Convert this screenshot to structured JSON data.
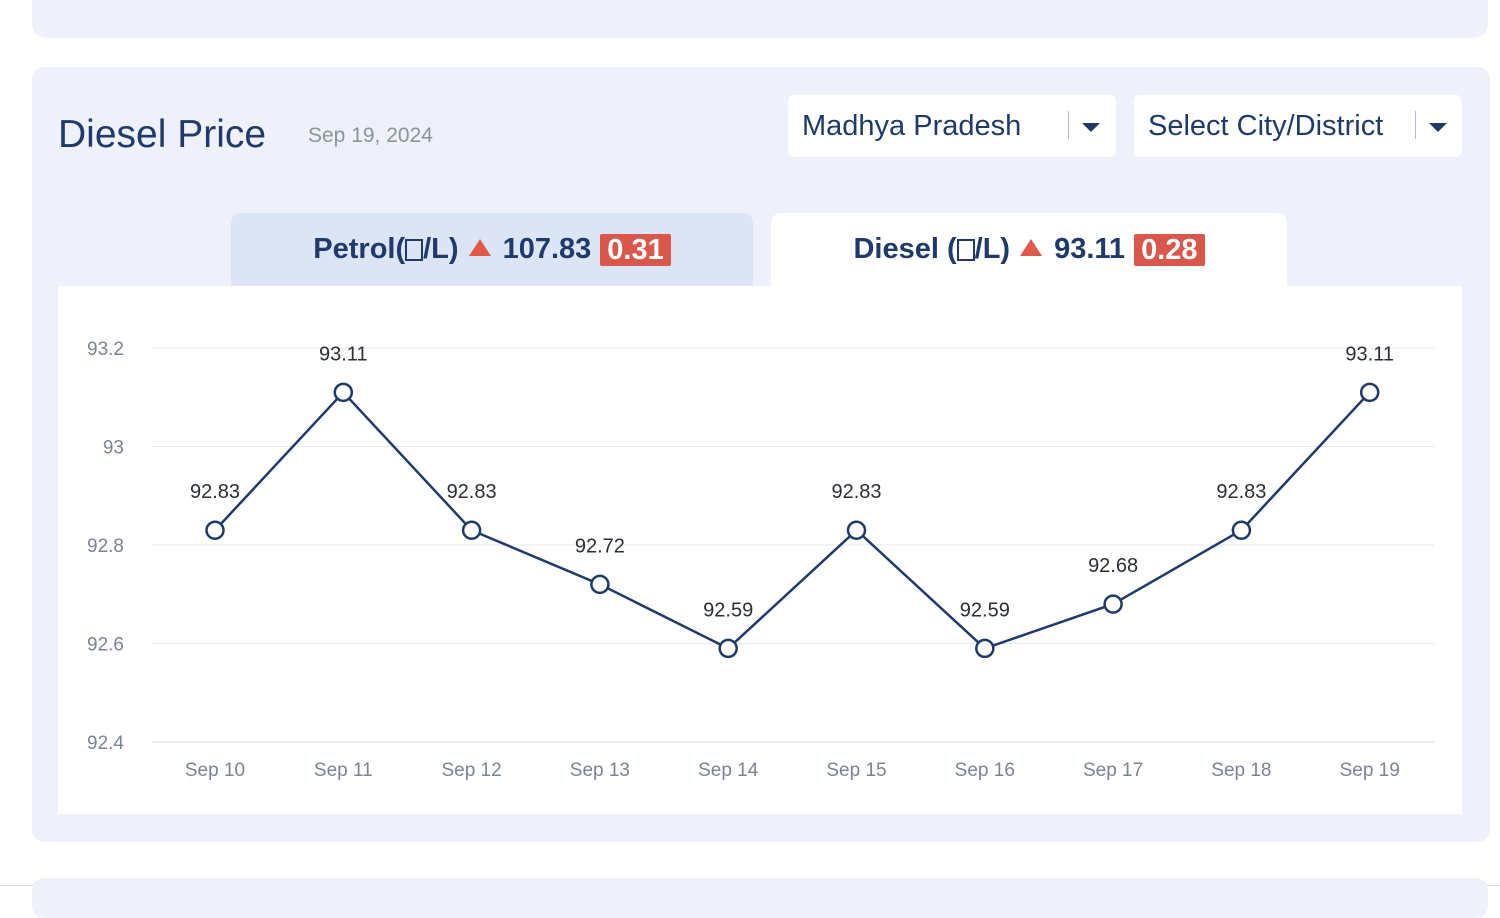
{
  "header": {
    "title": "Diesel Price",
    "date": "Sep 19, 2024"
  },
  "filters": {
    "state": "Madhya Pradesh",
    "city": "Select City/District"
  },
  "tabs": {
    "petrol": {
      "name_pre": "Petrol(",
      "name_post": "/L)",
      "price": "107.83",
      "change": "0.31"
    },
    "diesel": {
      "name_pre": "Diesel (",
      "name_post": "/L)",
      "price": "93.11",
      "change": "0.28"
    }
  },
  "colors": {
    "navy": "#1f3a6b",
    "up": "#d9574b",
    "line": "#1f3a6b",
    "grid": "#e6e9ef"
  },
  "chart_data": {
    "type": "line",
    "title": "",
    "xlabel": "",
    "ylabel": "",
    "categories": [
      "Sep 10",
      "Sep 11",
      "Sep 12",
      "Sep 13",
      "Sep 14",
      "Sep 15",
      "Sep 16",
      "Sep 17",
      "Sep 18",
      "Sep 19"
    ],
    "values": [
      92.83,
      93.11,
      92.83,
      92.72,
      92.59,
      92.83,
      92.59,
      92.68,
      92.83,
      93.11
    ],
    "value_labels": [
      "92.83",
      "93.11",
      "92.83",
      "92.72",
      "92.59",
      "92.83",
      "92.59",
      "92.68",
      "92.83",
      "93.11"
    ],
    "ylim": [
      92.4,
      93.2
    ],
    "yticks": [
      92.4,
      92.6,
      92.8,
      93,
      93.2
    ],
    "ytick_labels": [
      "92.4",
      "92.6",
      "92.8",
      "93",
      "93.2"
    ],
    "grid": true
  }
}
